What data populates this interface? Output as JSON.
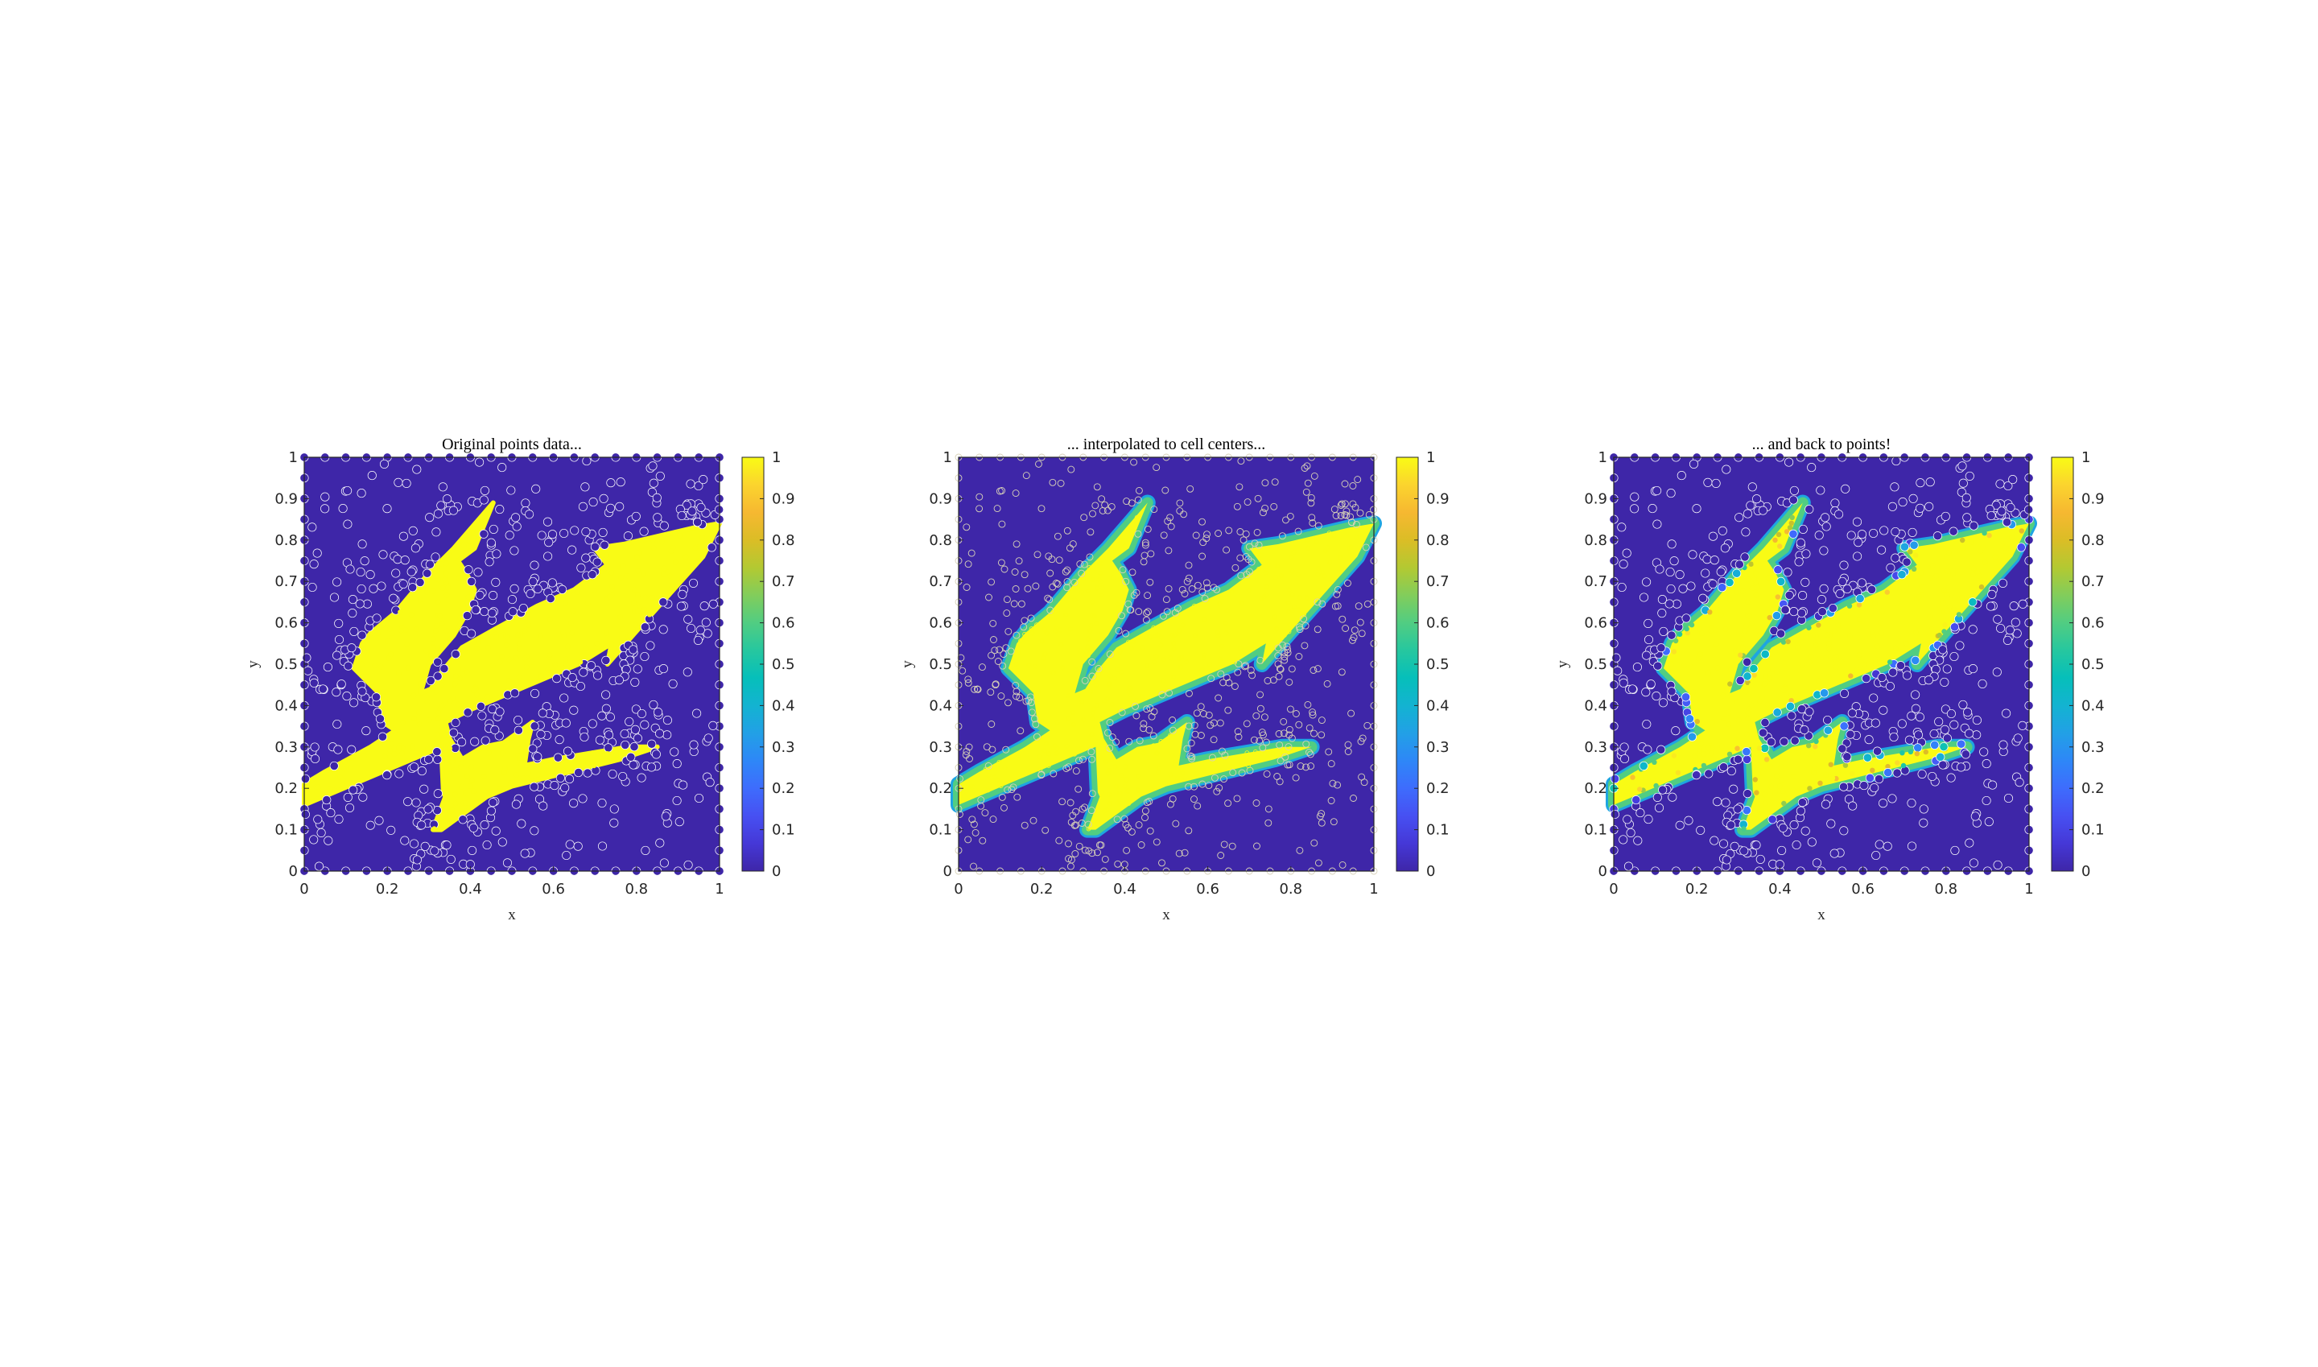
{
  "figure": {
    "colormap_name": "parula",
    "colormap": [
      "#3e26a8",
      "#4538d7",
      "#4750f2",
      "#3e6cfd",
      "#2e87f7",
      "#22a0e6",
      "#13b3d1",
      "#06bfba",
      "#26c79f",
      "#51cd82",
      "#82cd5b",
      "#b3c932",
      "#dbbd26",
      "#f6b831",
      "#fbd42e",
      "#f9fb15"
    ],
    "triangle_edge_color": "#ffffff",
    "marker_color": "#3e26a8"
  },
  "chart_data": [
    {
      "type": "heatmap",
      "name": "panel-points-original",
      "title": "Original points data...",
      "xlabel": "x",
      "ylabel": "y",
      "xlim": [
        0,
        1
      ],
      "ylim": [
        0,
        1
      ],
      "x_ticks": [
        "0",
        "0.2",
        "0.4",
        "0.6",
        "0.8",
        "1"
      ],
      "y_ticks": [
        "0",
        "0.1",
        "0.2",
        "0.3",
        "0.4",
        "0.5",
        "0.6",
        "0.7",
        "0.8",
        "0.9",
        "1"
      ],
      "colorbar": {
        "clim": [
          0,
          1
        ],
        "ticks": [
          "0",
          "0.1",
          "0.2",
          "0.3",
          "0.4",
          "0.5",
          "0.6",
          "0.7",
          "0.8",
          "0.9",
          "1"
        ]
      },
      "field": "trident indicator sampled at mesh points (values 0 outside, 1 inside)",
      "edge_smoothing": 0.0,
      "display": "points"
    },
    {
      "type": "heatmap",
      "name": "panel-cell-centers",
      "title": "... interpolated to cell centers...",
      "xlabel": "x",
      "ylabel": "y",
      "xlim": [
        0,
        1
      ],
      "ylim": [
        0,
        1
      ],
      "x_ticks": [
        "0",
        "0.2",
        "0.4",
        "0.6",
        "0.8",
        "1"
      ],
      "y_ticks": [
        "0",
        "0.1",
        "0.2",
        "0.3",
        "0.4",
        "0.5",
        "0.6",
        "0.7",
        "0.8",
        "0.9",
        "1"
      ],
      "colorbar": {
        "clim": [
          0,
          1
        ],
        "ticks": [
          "0",
          "0.1",
          "0.2",
          "0.3",
          "0.4",
          "0.5",
          "0.6",
          "0.7",
          "0.8",
          "0.9",
          "1"
        ]
      },
      "field": "trident indicator interpolated to triangle cell centers",
      "edge_smoothing": 0.018,
      "display": "cells"
    },
    {
      "type": "heatmap",
      "name": "panel-back-to-points",
      "title": "... and back to points!",
      "xlabel": "x",
      "ylabel": "y",
      "xlim": [
        0,
        1
      ],
      "ylim": [
        0,
        1
      ],
      "x_ticks": [
        "0",
        "0.2",
        "0.4",
        "0.6",
        "0.8",
        "1"
      ],
      "y_ticks": [
        "0",
        "0.1",
        "0.2",
        "0.3",
        "0.4",
        "0.5",
        "0.6",
        "0.7",
        "0.8",
        "0.9",
        "1"
      ],
      "colorbar": {
        "clim": [
          0,
          1
        ],
        "ticks": [
          "0",
          "0.1",
          "0.2",
          "0.3",
          "0.4",
          "0.5",
          "0.6",
          "0.7",
          "0.8",
          "0.9",
          "1"
        ]
      },
      "field": "cell values interpolated back to mesh points",
      "edge_smoothing": 0.012,
      "display": "points"
    }
  ],
  "trident_shape": {
    "units": "data coordinates (x, y in [0,1])",
    "outline": [
      [
        0.0,
        0.21
      ],
      [
        0.0,
        0.16
      ],
      [
        0.2,
        0.245
      ],
      [
        0.33,
        0.3
      ],
      [
        0.335,
        0.19
      ],
      [
        0.34,
        0.18
      ],
      [
        0.31,
        0.1
      ],
      [
        0.33,
        0.1
      ],
      [
        0.44,
        0.18
      ],
      [
        0.5,
        0.205
      ],
      [
        0.76,
        0.27
      ],
      [
        0.85,
        0.3
      ],
      [
        0.78,
        0.3
      ],
      [
        0.6,
        0.27
      ],
      [
        0.53,
        0.255
      ],
      [
        0.54,
        0.32
      ],
      [
        0.55,
        0.36
      ],
      [
        0.48,
        0.31
      ],
      [
        0.43,
        0.3
      ],
      [
        0.38,
        0.27
      ],
      [
        0.35,
        0.32
      ],
      [
        0.34,
        0.36
      ],
      [
        0.4,
        0.39
      ],
      [
        0.66,
        0.5
      ],
      [
        0.74,
        0.55
      ],
      [
        0.73,
        0.5
      ],
      [
        0.8,
        0.58
      ],
      [
        0.96,
        0.76
      ],
      [
        1.0,
        0.84
      ],
      [
        0.94,
        0.83
      ],
      [
        0.77,
        0.79
      ],
      [
        0.7,
        0.78
      ],
      [
        0.73,
        0.74
      ],
      [
        0.65,
        0.68
      ],
      [
        0.56,
        0.64
      ],
      [
        0.46,
        0.585
      ],
      [
        0.38,
        0.54
      ],
      [
        0.33,
        0.48
      ],
      [
        0.305,
        0.44
      ],
      [
        0.28,
        0.43
      ],
      [
        0.3,
        0.5
      ],
      [
        0.36,
        0.57
      ],
      [
        0.395,
        0.63
      ],
      [
        0.41,
        0.68
      ],
      [
        0.39,
        0.72
      ],
      [
        0.37,
        0.75
      ],
      [
        0.41,
        0.78
      ],
      [
        0.455,
        0.89
      ],
      [
        0.36,
        0.78
      ],
      [
        0.3,
        0.72
      ],
      [
        0.22,
        0.625
      ],
      [
        0.16,
        0.575
      ],
      [
        0.14,
        0.55
      ],
      [
        0.12,
        0.49
      ],
      [
        0.18,
        0.43
      ],
      [
        0.19,
        0.36
      ],
      [
        0.22,
        0.34
      ],
      [
        0.16,
        0.3
      ],
      [
        0.05,
        0.24
      ]
    ]
  }
}
